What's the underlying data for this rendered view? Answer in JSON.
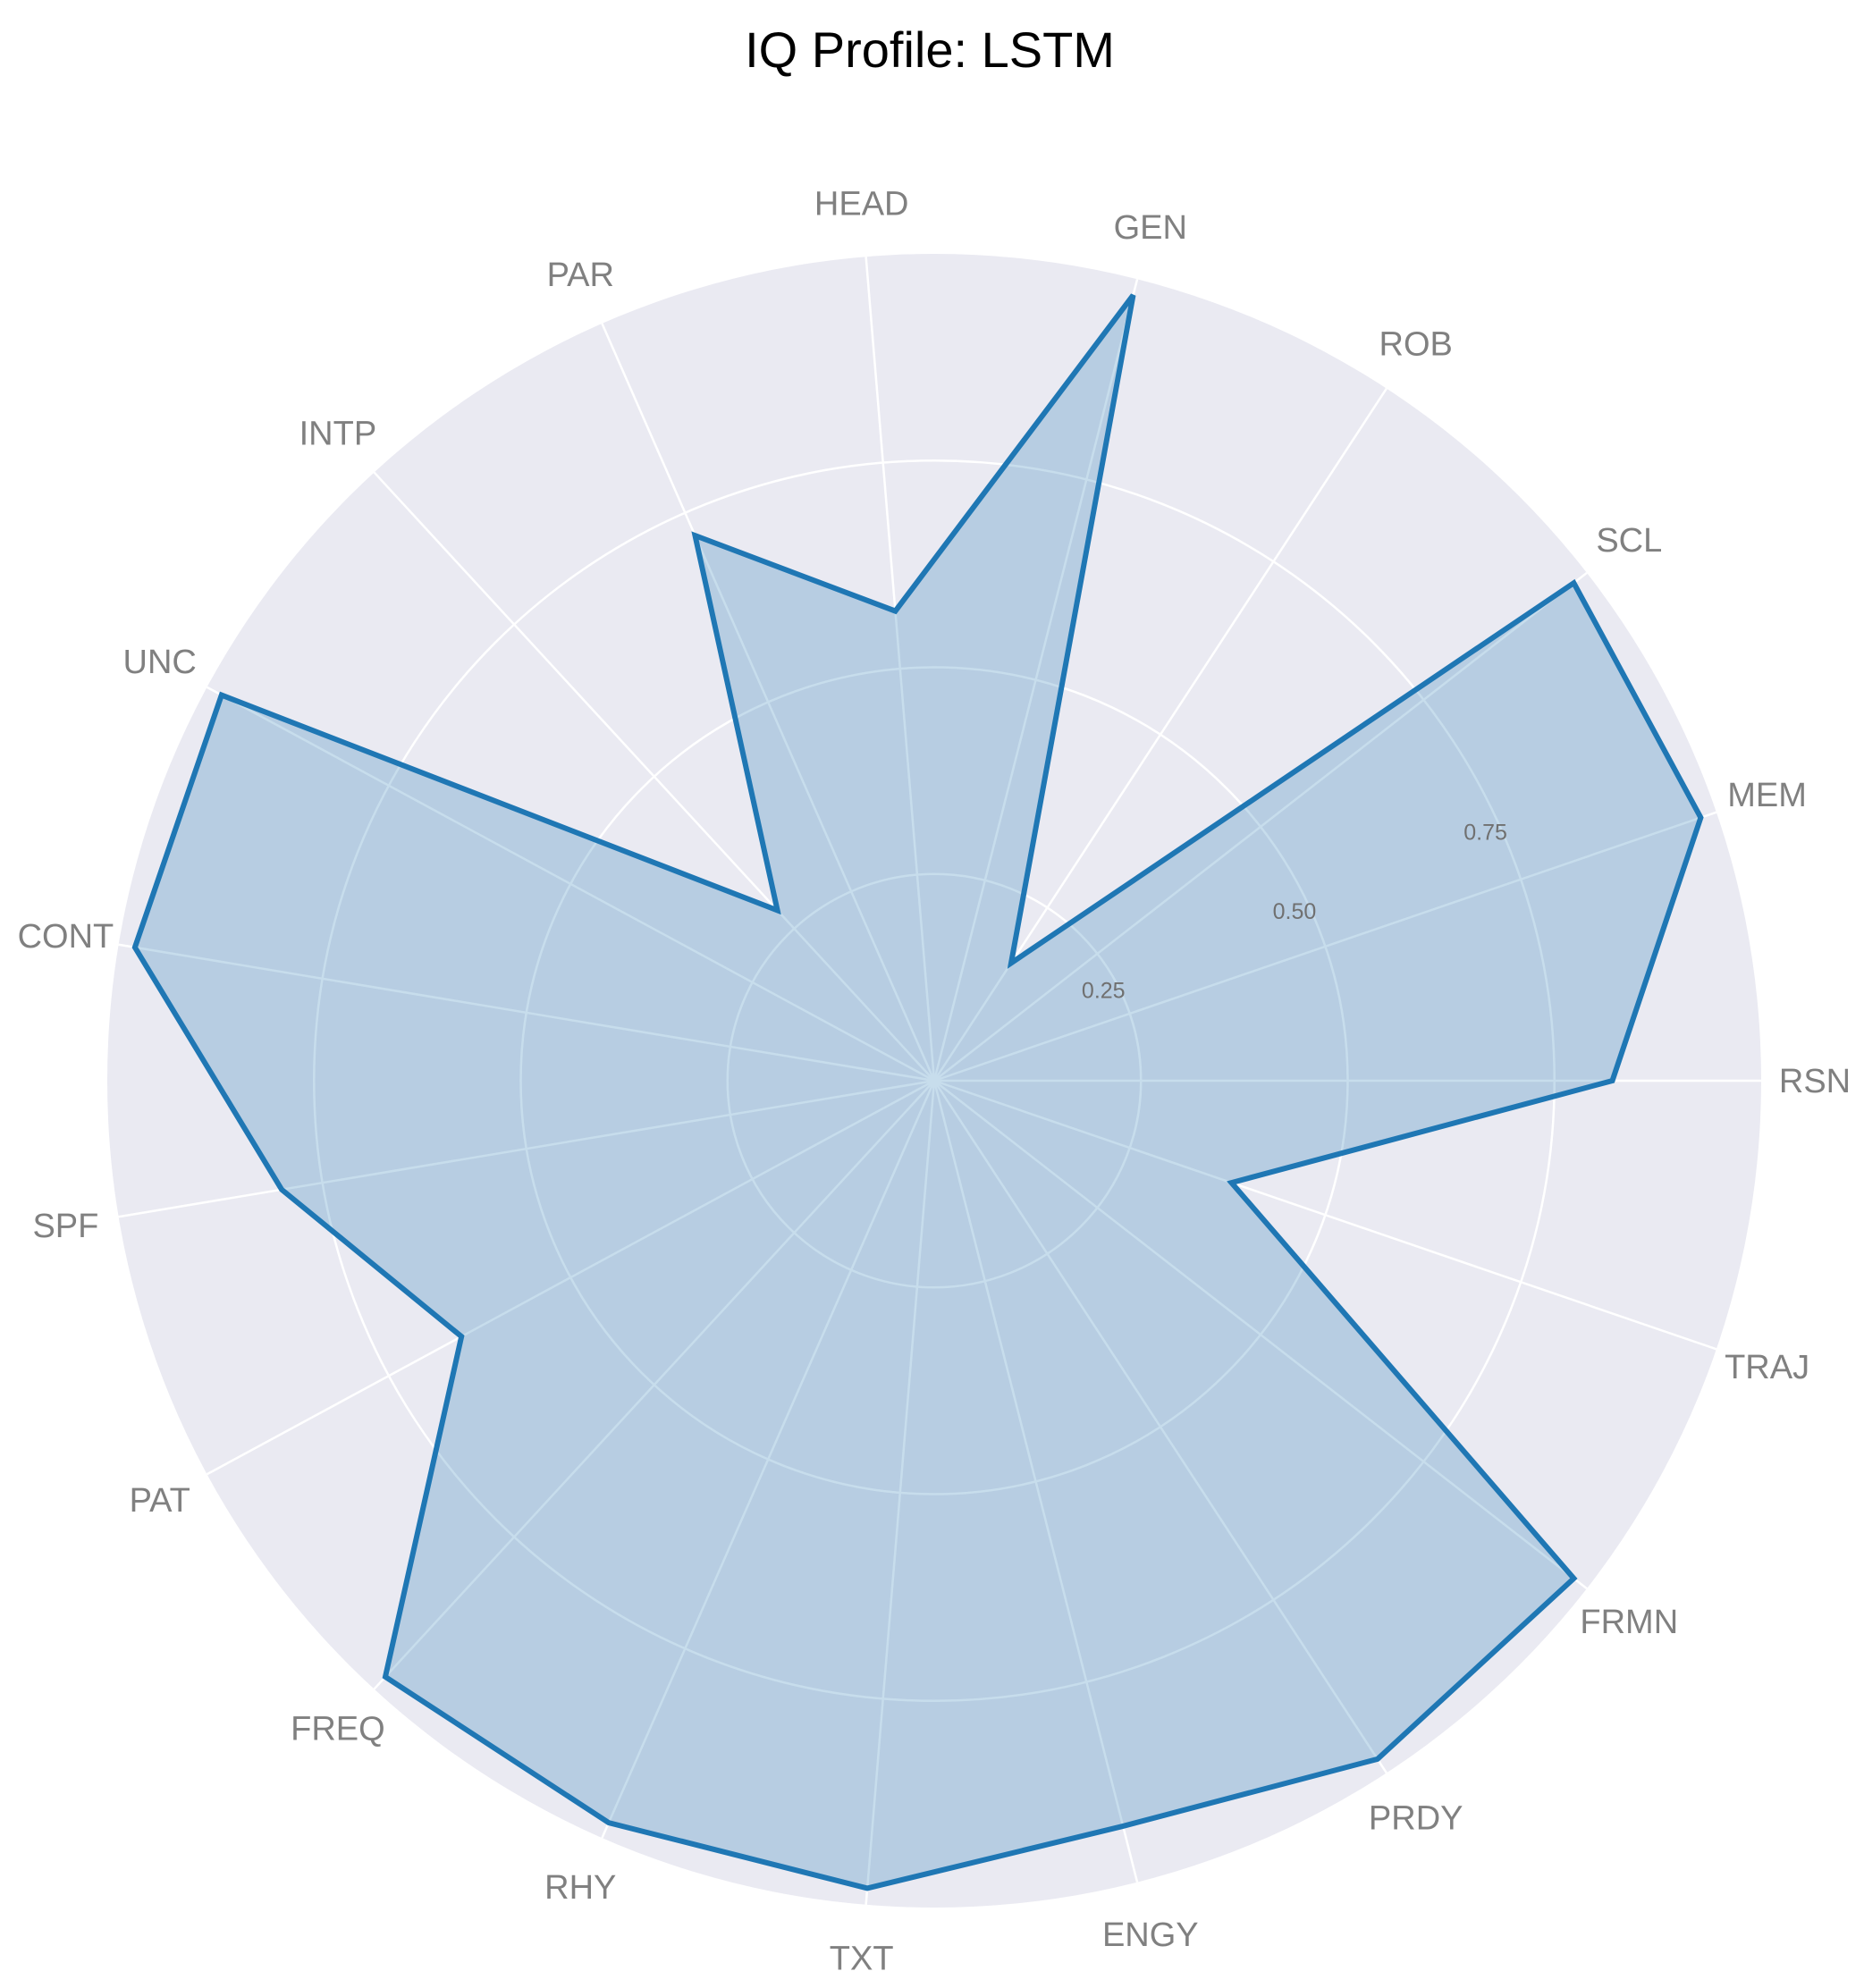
{
  "chart_data": {
    "type": "radar",
    "title": "IQ Profile: LSTM",
    "categories": [
      "RSN",
      "MEM",
      "SCL",
      "ROB",
      "GEN",
      "HEAD",
      "PAR",
      "INTP",
      "UNC",
      "CONT",
      "SPF",
      "PAT",
      "FREQ",
      "RHY",
      "TXT",
      "ENGY",
      "PRDY",
      "FRMN",
      "TRAJ"
    ],
    "series": [
      {
        "values": [
          0.82,
          0.98,
          0.98,
          0.17,
          0.98,
          0.57,
          0.72,
          0.28,
          0.98,
          0.98,
          0.8,
          0.65,
          0.98,
          0.98,
          0.98,
          0.93,
          0.98,
          0.98,
          0.38
        ]
      }
    ],
    "rlim": [
      0,
      1
    ],
    "rticks": [
      0.25,
      0.5,
      0.75
    ],
    "rtick_labels": [
      "0.25",
      "0.50",
      "0.75"
    ],
    "grid": true,
    "colors": {
      "line": "#1f77b4",
      "fill": "#1f77b4",
      "background": "#eaeaf2",
      "grid": "#ffffff"
    }
  }
}
